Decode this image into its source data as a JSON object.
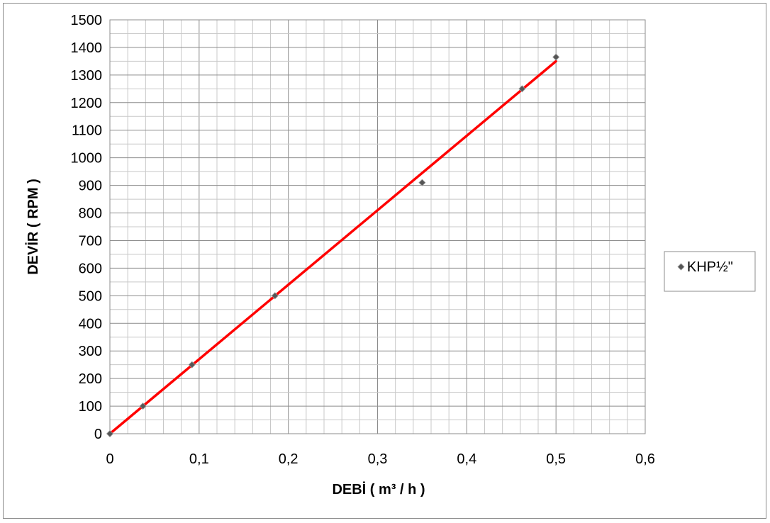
{
  "chart_data": {
    "type": "scatter",
    "title": "",
    "xlabel": "DEBİ ( m³ / h )",
    "ylabel": "DEVİR ( RPM )",
    "xlim": [
      0,
      0.6
    ],
    "ylim": [
      0,
      1500
    ],
    "x_ticks": [
      "0",
      "0,1",
      "0,2",
      "0,3",
      "0,4",
      "0,5",
      "0,6"
    ],
    "y_ticks": [
      "0",
      "100",
      "200",
      "300",
      "400",
      "500",
      "600",
      "700",
      "800",
      "900",
      "1000",
      "1100",
      "1200",
      "1300",
      "1400",
      "1500"
    ],
    "grid": true,
    "legend_position": "right",
    "series": [
      {
        "name": "KHP½\"",
        "marker": "diamond",
        "color": "#555555",
        "points": [
          {
            "x": 0,
            "y": 0
          },
          {
            "x": 0.037,
            "y": 100
          },
          {
            "x": 0.092,
            "y": 250
          },
          {
            "x": 0.185,
            "y": 500
          },
          {
            "x": 0.35,
            "y": 910
          },
          {
            "x": 0.462,
            "y": 1250
          },
          {
            "x": 0.5,
            "y": 1365
          }
        ]
      }
    ],
    "trendline": {
      "type": "linear",
      "color": "#ff0000",
      "from": {
        "x": 0,
        "y": 0
      },
      "to": {
        "x": 0.5,
        "y": 1350
      }
    }
  }
}
